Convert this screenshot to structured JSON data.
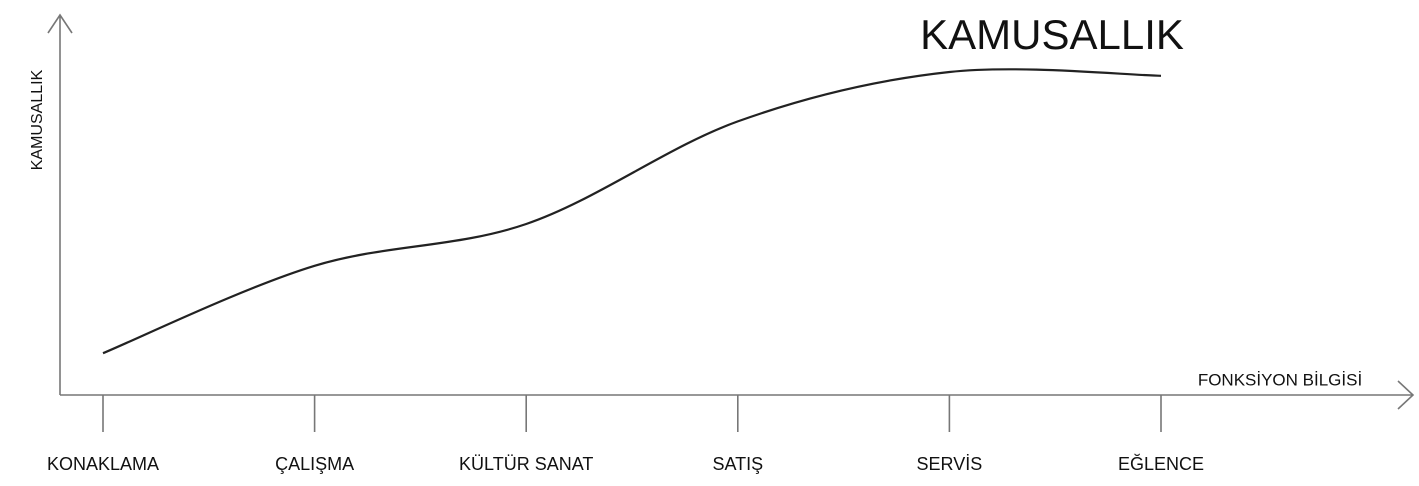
{
  "chart_data": {
    "type": "line",
    "title": "KAMUSALLIK",
    "ylabel": "KAMUSALLIK",
    "xlabel": "FONKSİYON BİLGİSİ",
    "categories": [
      "KONAKLAMA",
      "ÇALIŞMA",
      "KÜLTÜR SANAT",
      "SATIŞ",
      "SERVİS",
      "EĞLENCE"
    ],
    "values": [
      11,
      34,
      45,
      72,
      85,
      84
    ],
    "color": "#222222",
    "ylim": [
      0,
      100
    ]
  }
}
